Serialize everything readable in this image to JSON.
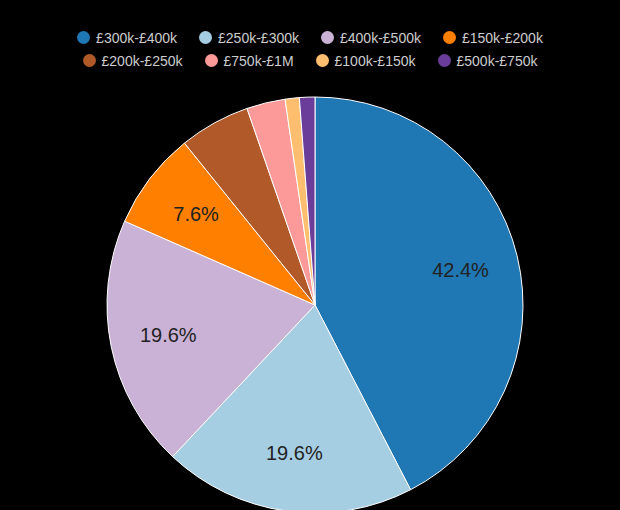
{
  "chart_data": {
    "type": "pie",
    "categories": [
      "£300k-£400k",
      "£250k-£300k",
      "£400k-£500k",
      "£150k-£200k",
      "£200k-£250k",
      "£750k-£1M",
      "£100k-£150k",
      "£500k-£750k"
    ],
    "values": [
      42.4,
      19.6,
      19.6,
      7.6,
      5.5,
      3.0,
      1.1,
      1.2
    ],
    "value_labels": [
      "42.4%",
      "19.6%",
      "19.6%",
      "7.6%",
      null,
      null,
      null,
      null
    ],
    "colors": [
      "#1f77b4",
      "#a6cee3",
      "#cab2d6",
      "#ff7f00",
      "#b15928",
      "#fb9a99",
      "#fdbf6f",
      "#6a3d9a"
    ],
    "legend": "top"
  }
}
